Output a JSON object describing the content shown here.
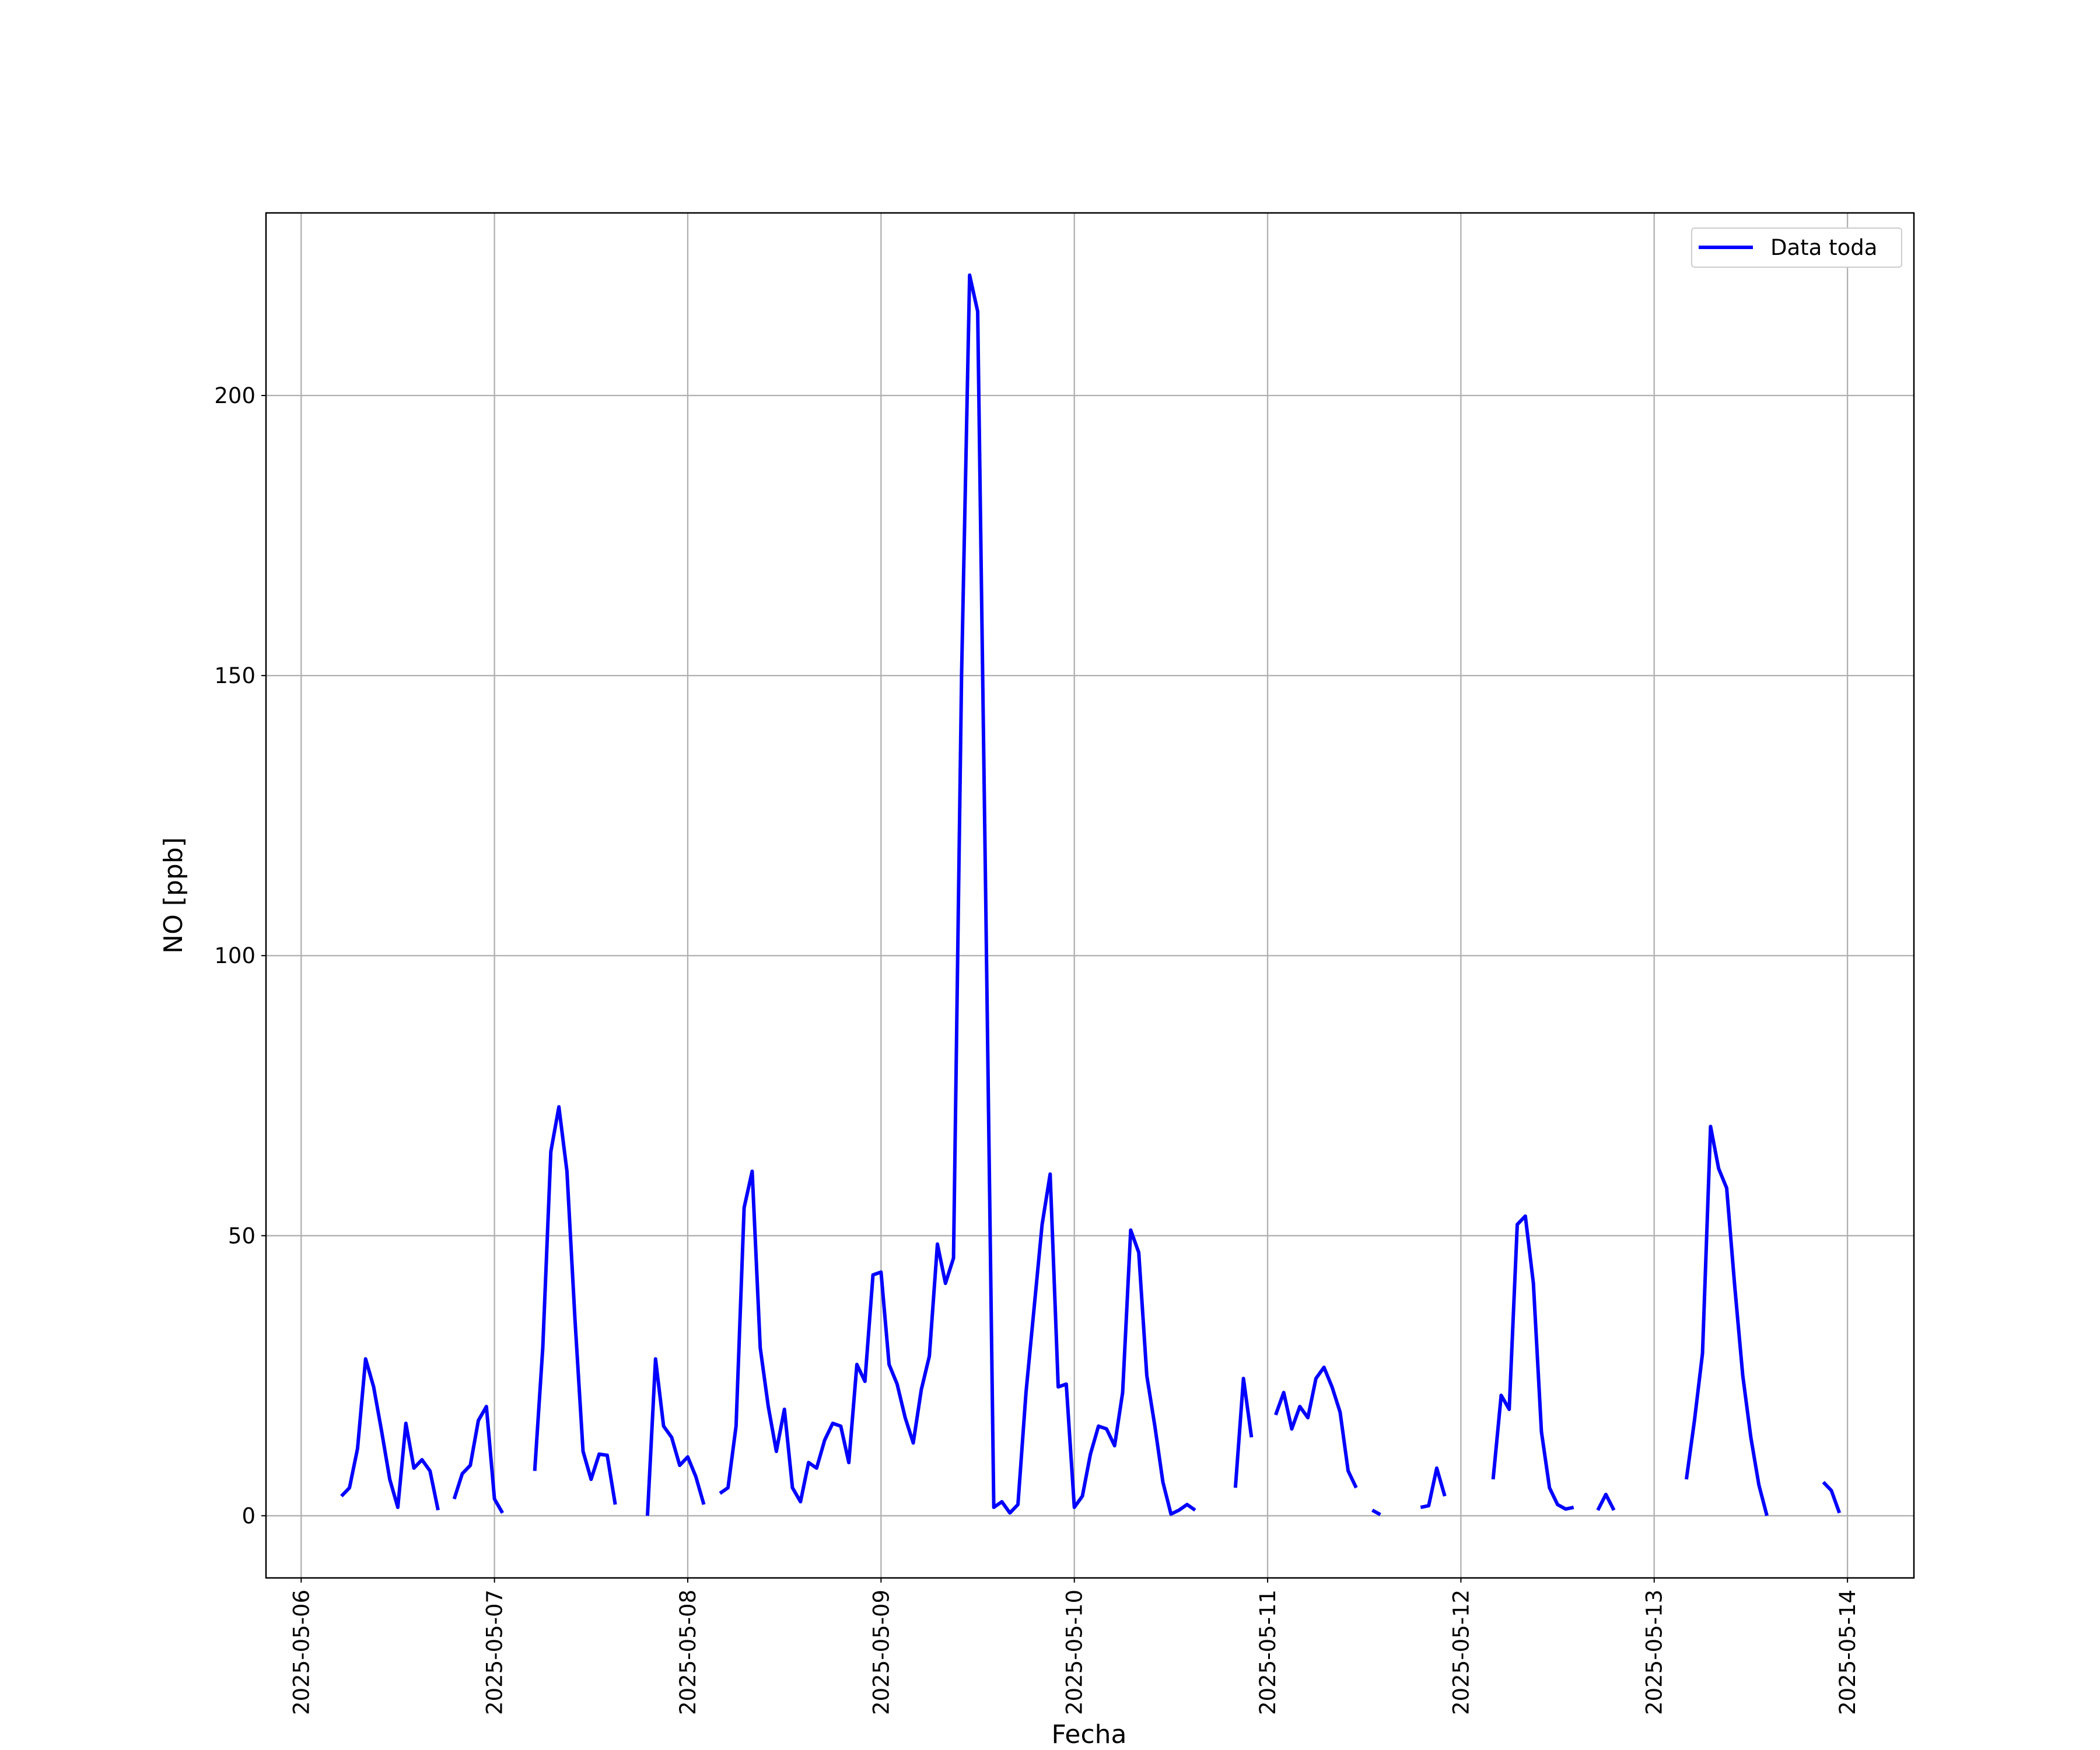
{
  "chart_data": {
    "type": "line",
    "xlabel": "Fecha",
    "ylabel": "NO [ppb]",
    "xlim": [
      "2025-05-05 19:38",
      "2025-05-14 08:15"
    ],
    "xticks": [
      "2025-05-06",
      "2025-05-07",
      "2025-05-08",
      "2025-05-09",
      "2025-05-10",
      "2025-05-11",
      "2025-05-12",
      "2025-05-13",
      "2025-05-14"
    ],
    "ylim": [
      -11.1,
      232.6
    ],
    "yticks": [
      0,
      50,
      100,
      150,
      200
    ],
    "grid": true,
    "legend": "upper right",
    "x": [
      "2025-05-06 05:00",
      "2025-05-06 06:00",
      "2025-05-06 07:00",
      "2025-05-06 08:00",
      "2025-05-06 09:00",
      "2025-05-06 10:00",
      "2025-05-06 11:00",
      "2025-05-06 12:00",
      "2025-05-06 13:00",
      "2025-05-06 14:00",
      "2025-05-06 15:00",
      "2025-05-06 16:00",
      "2025-05-06 17:00",
      "2025-05-06 18:00",
      "2025-05-06 19:00",
      "2025-05-06 20:00",
      "2025-05-06 21:00",
      "2025-05-06 22:00",
      "2025-05-06 23:00",
      "2025-05-07 00:00",
      "2025-05-07 01:00",
      "2025-05-07 02:00",
      "2025-05-07 03:00",
      "2025-05-07 04:00",
      "2025-05-07 05:00",
      "2025-05-07 06:00",
      "2025-05-07 07:00",
      "2025-05-07 08:00",
      "2025-05-07 09:00",
      "2025-05-07 10:00",
      "2025-05-07 11:00",
      "2025-05-07 12:00",
      "2025-05-07 13:00",
      "2025-05-07 14:00",
      "2025-05-07 15:00",
      "2025-05-07 16:00",
      "2025-05-07 17:00",
      "2025-05-07 18:00",
      "2025-05-07 19:00",
      "2025-05-07 20:00",
      "2025-05-07 21:00",
      "2025-05-07 22:00",
      "2025-05-07 23:00",
      "2025-05-08 00:00",
      "2025-05-08 01:00",
      "2025-05-08 02:00",
      "2025-05-08 03:00",
      "2025-05-08 04:00",
      "2025-05-08 05:00",
      "2025-05-08 06:00",
      "2025-05-08 07:00",
      "2025-05-08 08:00",
      "2025-05-08 09:00",
      "2025-05-08 10:00",
      "2025-05-08 11:00",
      "2025-05-08 12:00",
      "2025-05-08 13:00",
      "2025-05-08 14:00",
      "2025-05-08 15:00",
      "2025-05-08 16:00",
      "2025-05-08 17:00",
      "2025-05-08 18:00",
      "2025-05-08 19:00",
      "2025-05-08 20:00",
      "2025-05-08 21:00",
      "2025-05-08 22:00",
      "2025-05-08 23:00",
      "2025-05-09 00:00",
      "2025-05-09 01:00",
      "2025-05-09 02:00",
      "2025-05-09 03:00",
      "2025-05-09 04:00",
      "2025-05-09 05:00",
      "2025-05-09 06:00",
      "2025-05-09 07:00",
      "2025-05-09 08:00",
      "2025-05-09 09:00",
      "2025-05-09 10:00",
      "2025-05-09 11:00",
      "2025-05-09 12:00",
      "2025-05-09 13:00",
      "2025-05-09 14:00",
      "2025-05-09 15:00",
      "2025-05-09 16:00",
      "2025-05-09 17:00",
      "2025-05-09 18:00",
      "2025-05-09 19:00",
      "2025-05-09 20:00",
      "2025-05-09 21:00",
      "2025-05-09 22:00",
      "2025-05-09 23:00",
      "2025-05-10 00:00",
      "2025-05-10 01:00",
      "2025-05-10 02:00",
      "2025-05-10 03:00",
      "2025-05-10 04:00",
      "2025-05-10 05:00",
      "2025-05-10 06:00",
      "2025-05-10 07:00",
      "2025-05-10 08:00",
      "2025-05-10 09:00",
      "2025-05-10 10:00",
      "2025-05-10 11:00",
      "2025-05-10 12:00",
      "2025-05-10 13:00",
      "2025-05-10 14:00",
      "2025-05-10 15:00",
      "2025-05-10 16:00",
      "2025-05-10 17:00",
      "2025-05-10 18:00",
      "2025-05-10 19:00",
      "2025-05-10 20:00",
      "2025-05-10 21:00",
      "2025-05-10 22:00",
      "2025-05-10 23:00",
      "2025-05-11 00:00",
      "2025-05-11 01:00",
      "2025-05-11 02:00",
      "2025-05-11 03:00",
      "2025-05-11 04:00",
      "2025-05-11 05:00",
      "2025-05-11 06:00",
      "2025-05-11 07:00",
      "2025-05-11 08:00",
      "2025-05-11 09:00",
      "2025-05-11 10:00",
      "2025-05-11 11:00",
      "2025-05-11 12:00",
      "2025-05-11 13:00",
      "2025-05-11 14:00",
      "2025-05-11 15:00",
      "2025-05-11 16:00",
      "2025-05-11 17:00",
      "2025-05-11 18:00",
      "2025-05-11 19:00",
      "2025-05-11 20:00",
      "2025-05-11 21:00",
      "2025-05-11 22:00",
      "2025-05-11 23:00",
      "2025-05-12 00:00",
      "2025-05-12 01:00",
      "2025-05-12 02:00",
      "2025-05-12 03:00",
      "2025-05-12 04:00",
      "2025-05-12 05:00",
      "2025-05-12 06:00",
      "2025-05-12 07:00",
      "2025-05-12 08:00",
      "2025-05-12 09:00",
      "2025-05-12 10:00",
      "2025-05-12 11:00",
      "2025-05-12 12:00",
      "2025-05-12 13:00",
      "2025-05-12 14:00",
      "2025-05-12 15:00",
      "2025-05-12 16:00",
      "2025-05-12 17:00",
      "2025-05-12 18:00",
      "2025-05-12 19:00",
      "2025-05-12 20:00",
      "2025-05-12 21:00",
      "2025-05-12 22:00",
      "2025-05-12 23:00",
      "2025-05-13 00:00",
      "2025-05-13 01:00",
      "2025-05-13 02:00",
      "2025-05-13 03:00",
      "2025-05-13 04:00",
      "2025-05-13 05:00",
      "2025-05-13 06:00",
      "2025-05-13 07:00",
      "2025-05-13 08:00",
      "2025-05-13 09:00",
      "2025-05-13 10:00",
      "2025-05-13 11:00",
      "2025-05-13 12:00",
      "2025-05-13 13:00",
      "2025-05-13 14:00",
      "2025-05-13 15:00",
      "2025-05-13 16:00",
      "2025-05-13 17:00",
      "2025-05-13 18:00",
      "2025-05-13 19:00",
      "2025-05-13 20:00",
      "2025-05-13 21:00",
      "2025-05-13 22:00",
      "2025-05-13 23:00"
    ],
    "series": [
      {
        "name": "Data toda",
        "color": "#0000ff",
        "values": [
          3.5,
          5,
          12,
          28,
          23,
          15,
          6.5,
          1.5,
          16.5,
          8.5,
          10,
          8,
          1,
          null,
          3,
          7.5,
          9,
          17,
          19.5,
          3,
          0.5,
          null,
          null,
          null,
          8,
          30,
          65,
          73,
          61.5,
          35,
          11.5,
          6.5,
          11,
          10.8,
          2,
          null,
          null,
          null,
          0,
          28,
          16,
          14,
          9,
          10.5,
          7,
          2,
          null,
          4,
          5,
          16,
          55,
          61.5,
          30,
          19.5,
          11.5,
          19,
          5,
          2.5,
          9.5,
          8.5,
          13.5,
          16.5,
          16,
          9.5,
          27,
          24,
          43,
          43.5,
          27,
          23.5,
          17.5,
          13,
          22.5,
          28.5,
          48.5,
          41.5,
          46,
          150,
          221.5,
          215,
          110,
          1.5,
          2.5,
          0.5,
          2,
          22,
          37,
          52,
          61,
          23,
          23.5,
          1.5,
          3.5,
          11,
          16,
          15.5,
          12.5,
          22,
          51,
          47,
          25,
          16,
          6,
          0.3,
          1,
          2,
          1,
          null,
          null,
          null,
          null,
          5,
          24.5,
          14,
          null,
          null,
          18,
          22,
          15.5,
          19.5,
          17.5,
          24.5,
          26.5,
          23,
          18.5,
          8,
          5,
          null,
          1,
          0.2,
          null,
          null,
          null,
          null,
          1.5,
          1.8,
          8.5,
          3.5,
          null,
          null,
          null,
          null,
          null,
          6.5,
          21.5,
          19,
          52,
          53.5,
          41.5,
          15,
          5,
          2,
          1.2,
          1.5,
          null,
          null,
          1,
          3.8,
          1,
          null,
          null,
          null,
          null,
          null,
          null,
          null,
          null,
          6.5,
          17,
          29,
          69.5,
          62,
          58.5,
          41,
          25,
          14,
          5.5,
          0,
          null,
          null,
          null,
          null,
          null,
          null,
          6,
          4.5,
          0.5
        ]
      }
    ]
  }
}
